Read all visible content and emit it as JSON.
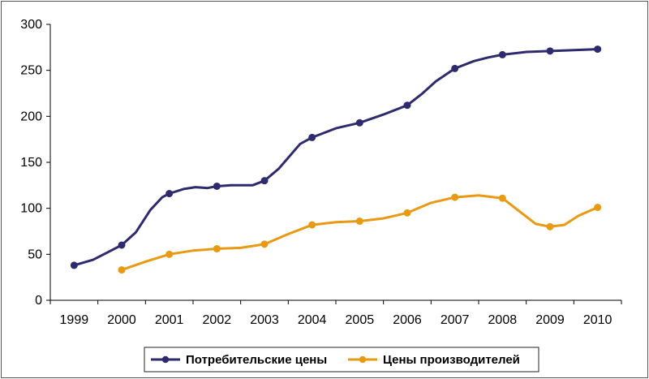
{
  "chart_data": {
    "type": "line",
    "categories": [
      "1999",
      "2000",
      "2001",
      "2002",
      "2003",
      "2004",
      "2005",
      "2006",
      "2007",
      "2008",
      "2009",
      "2010"
    ],
    "ylim": [
      0,
      300
    ],
    "yticks": [
      0,
      50,
      100,
      150,
      200,
      250,
      300
    ],
    "grid": false,
    "legend_position": "bottom",
    "series": [
      {
        "name": "Потребительские цены",
        "color": "#2e2a6e",
        "values": [
          38,
          60,
          116,
          124,
          130,
          177,
          193,
          212,
          252,
          267,
          271,
          273
        ],
        "curve": [
          [
            0,
            38
          ],
          [
            0.4,
            44
          ],
          [
            0.7,
            52
          ],
          [
            1,
            60
          ],
          [
            1.3,
            74
          ],
          [
            1.6,
            98
          ],
          [
            1.85,
            112
          ],
          [
            2,
            116
          ],
          [
            2.3,
            121
          ],
          [
            2.55,
            123
          ],
          [
            2.8,
            122
          ],
          [
            3,
            124
          ],
          [
            3.3,
            125
          ],
          [
            3.75,
            125
          ],
          [
            4,
            130
          ],
          [
            4.3,
            143
          ],
          [
            4.75,
            170
          ],
          [
            5,
            177
          ],
          [
            5.5,
            187
          ],
          [
            6,
            193
          ],
          [
            6.5,
            202
          ],
          [
            7,
            212
          ],
          [
            7.3,
            224
          ],
          [
            7.6,
            238
          ],
          [
            8,
            252
          ],
          [
            8.4,
            260
          ],
          [
            8.7,
            264
          ],
          [
            9,
            267
          ],
          [
            9.5,
            270
          ],
          [
            10,
            271
          ],
          [
            10.5,
            272
          ],
          [
            11,
            273
          ]
        ]
      },
      {
        "name": "Цены производителей",
        "color": "#e89a14",
        "values": [
          null,
          33,
          50,
          56,
          61,
          82,
          86,
          95,
          112,
          111,
          80,
          101
        ],
        "curve": [
          [
            1,
            33
          ],
          [
            1.5,
            42
          ],
          [
            2,
            50
          ],
          [
            2.5,
            54
          ],
          [
            3,
            56
          ],
          [
            3.5,
            57
          ],
          [
            4,
            61
          ],
          [
            4.5,
            72
          ],
          [
            5,
            82
          ],
          [
            5.5,
            85
          ],
          [
            6,
            86
          ],
          [
            6.5,
            89
          ],
          [
            7,
            95
          ],
          [
            7.5,
            106
          ],
          [
            8,
            112
          ],
          [
            8.5,
            114
          ],
          [
            9,
            111
          ],
          [
            9.4,
            95
          ],
          [
            9.7,
            83
          ],
          [
            10,
            80
          ],
          [
            10.3,
            82
          ],
          [
            10.6,
            92
          ],
          [
            11,
            101
          ]
        ]
      }
    ]
  }
}
